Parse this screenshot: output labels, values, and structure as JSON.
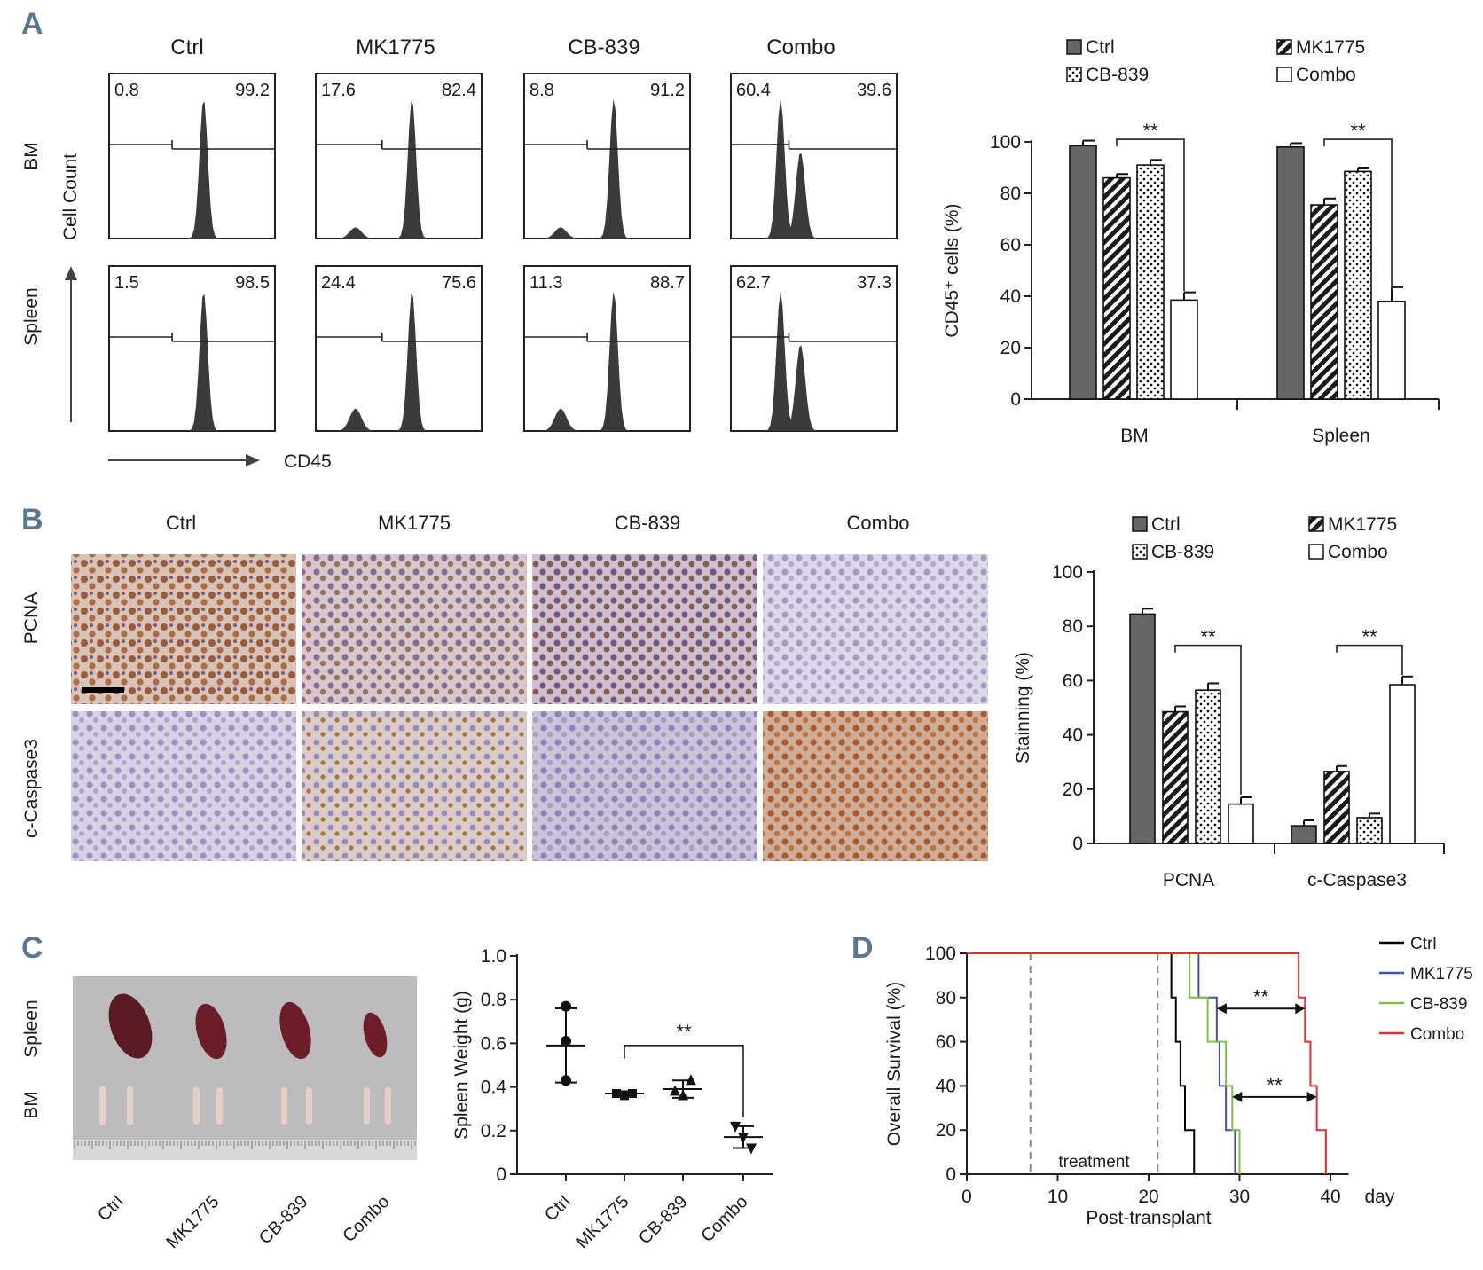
{
  "panels": {
    "a": "A",
    "b": "B",
    "c": "C",
    "d": "D"
  },
  "colors": {
    "ctrl": "#666666",
    "mk1775": "#1a1a1a",
    "cb839": "#1a1a1a",
    "combo": "#ffffff",
    "d_ctrl": "#000000",
    "d_mk1775": "#4250ad",
    "d_cb839": "#7cc242",
    "d_combo": "#e0312b"
  },
  "chart_data": [
    {
      "id": "A_flow",
      "type": "histogram-grid",
      "columns": [
        "Ctrl",
        "MK1775",
        "CB-839",
        "Combo"
      ],
      "rows": [
        "BM",
        "Spleen"
      ],
      "ylabel": "Cell Count",
      "xlabel": "CD45",
      "gates": [
        [
          [
            "0.8",
            "99.2"
          ],
          [
            "17.6",
            "82.4"
          ],
          [
            "8.8",
            "91.2"
          ],
          [
            "60.4",
            "39.6"
          ]
        ],
        [
          [
            "1.5",
            "98.5"
          ],
          [
            "24.4",
            "75.6"
          ],
          [
            "11.3",
            "88.7"
          ],
          [
            "62.7",
            "37.3"
          ]
        ]
      ]
    },
    {
      "id": "A_bar",
      "type": "bar",
      "categories": [
        "BM",
        "Spleen"
      ],
      "series": [
        {
          "name": "Ctrl",
          "values": [
            98.5,
            98
          ],
          "errors": [
            2,
            1.5
          ]
        },
        {
          "name": "MK1775",
          "values": [
            86,
            75.5
          ],
          "errors": [
            1.5,
            2.5
          ]
        },
        {
          "name": "CB-839",
          "values": [
            91,
            88.5
          ],
          "errors": [
            2,
            1.5
          ]
        },
        {
          "name": "Combo",
          "values": [
            38.5,
            38
          ],
          "errors": [
            3,
            5.5
          ]
        }
      ],
      "ylabel": "CD45⁺ cells (%)",
      "ylim": [
        0,
        100
      ],
      "yticks": [
        0,
        20,
        40,
        60,
        80,
        100
      ],
      "significance": "**"
    },
    {
      "id": "B_ihc",
      "type": "image-grid",
      "columns": [
        "Ctrl",
        "MK1775",
        "CB-839",
        "Combo"
      ],
      "rows": [
        "PCNA",
        "c-Caspase3"
      ]
    },
    {
      "id": "B_bar",
      "type": "bar",
      "categories": [
        "PCNA",
        "c-Caspase3"
      ],
      "series": [
        {
          "name": "Ctrl",
          "values": [
            84.5,
            6.5
          ],
          "errors": [
            2,
            2
          ]
        },
        {
          "name": "MK1775",
          "values": [
            48.5,
            26.5
          ],
          "errors": [
            2,
            2
          ]
        },
        {
          "name": "CB-839",
          "values": [
            56.5,
            9.5
          ],
          "errors": [
            2.5,
            1.5
          ]
        },
        {
          "name": "Combo",
          "values": [
            14.5,
            58.5
          ],
          "errors": [
            2.5,
            3
          ]
        }
      ],
      "ylabel": "Stainning (%)",
      "ylim": [
        0,
        100
      ],
      "yticks": [
        0,
        20,
        40,
        60,
        80,
        100
      ],
      "significance": "**"
    },
    {
      "id": "C_photo",
      "type": "image",
      "rows": [
        "Spleen",
        "BM"
      ],
      "columns": [
        "Ctrl",
        "MK1775",
        "CB-839",
        "Combo"
      ]
    },
    {
      "id": "C_scatter",
      "type": "scatter",
      "categories": [
        "Ctrl",
        "MK1775",
        "CB-839",
        "Combo"
      ],
      "points": [
        [
          0.77,
          0.61,
          0.43
        ],
        [
          0.37,
          0.36,
          0.37
        ],
        [
          0.38,
          0.36,
          0.43
        ],
        [
          0.22,
          0.17,
          0.12
        ]
      ],
      "mean": [
        0.59,
        0.37,
        0.39,
        0.17
      ],
      "sd": [
        0.17,
        0.01,
        0.04,
        0.05
      ],
      "ylabel": "Spleen Weight (g)",
      "ylim": [
        0,
        1.0
      ],
      "yticks": [
        "0",
        "0.2",
        "0.4",
        "0.6",
        "0.8",
        "1.0"
      ],
      "significance": "**"
    },
    {
      "id": "D_survival",
      "type": "line",
      "xlabel": "Post-transplant",
      "xunit": "day",
      "ylabel": "Overall Survival (%)",
      "xlim": [
        0,
        42
      ],
      "ylim": [
        0,
        100
      ],
      "xticks": [
        0,
        10,
        20,
        30,
        40
      ],
      "yticks": [
        0,
        20,
        40,
        60,
        80,
        100
      ],
      "treatment_window": [
        7,
        21
      ],
      "treatment_label": "treatment",
      "series": [
        {
          "name": "Ctrl",
          "steps": [
            [
              0,
              100
            ],
            [
              22.5,
              80
            ],
            [
              23,
              60
            ],
            [
              23.5,
              40
            ],
            [
              24,
              20
            ],
            [
              25,
              0
            ]
          ]
        },
        {
          "name": "MK1775",
          "steps": [
            [
              0,
              100
            ],
            [
              25.5,
              80
            ],
            [
              27.5,
              60
            ],
            [
              27.8,
              40
            ],
            [
              28.5,
              20
            ],
            [
              29.5,
              0
            ]
          ]
        },
        {
          "name": "CB-839",
          "steps": [
            [
              0,
              100
            ],
            [
              24.5,
              80
            ],
            [
              26.5,
              60
            ],
            [
              28.5,
              40
            ],
            [
              29.2,
              20
            ],
            [
              30,
              0
            ]
          ]
        },
        {
          "name": "Combo",
          "steps": [
            [
              0,
              100
            ],
            [
              36.5,
              80
            ],
            [
              37.2,
              60
            ],
            [
              37.8,
              40
            ],
            [
              38.5,
              20
            ],
            [
              39.5,
              0
            ]
          ]
        }
      ],
      "significance": "**"
    }
  ]
}
